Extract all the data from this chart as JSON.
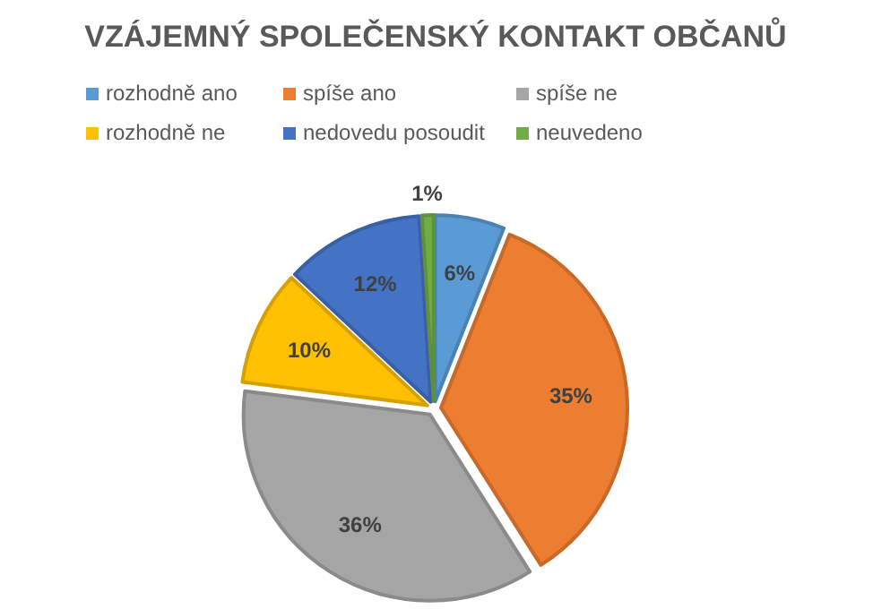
{
  "chart_data": {
    "type": "pie",
    "title": "VZÁJEMNÝ SPOLEČENSKÝ KONTAKT OBČANŮ",
    "categories": [
      "rozhodně ano",
      "spíše ano",
      "spíše ne",
      "rozhodně ne",
      "nedovedu posoudit",
      "neuvedeno"
    ],
    "values": [
      6,
      35,
      36,
      10,
      12,
      1
    ],
    "value_labels": [
      "6%",
      "35%",
      "36%",
      "10%",
      "12%",
      "1%"
    ],
    "colors": [
      "#5b9bd5",
      "#ed7d31",
      "#a5a5a5",
      "#ffc000",
      "#4472c4",
      "#70ad47"
    ],
    "legend": "top"
  }
}
